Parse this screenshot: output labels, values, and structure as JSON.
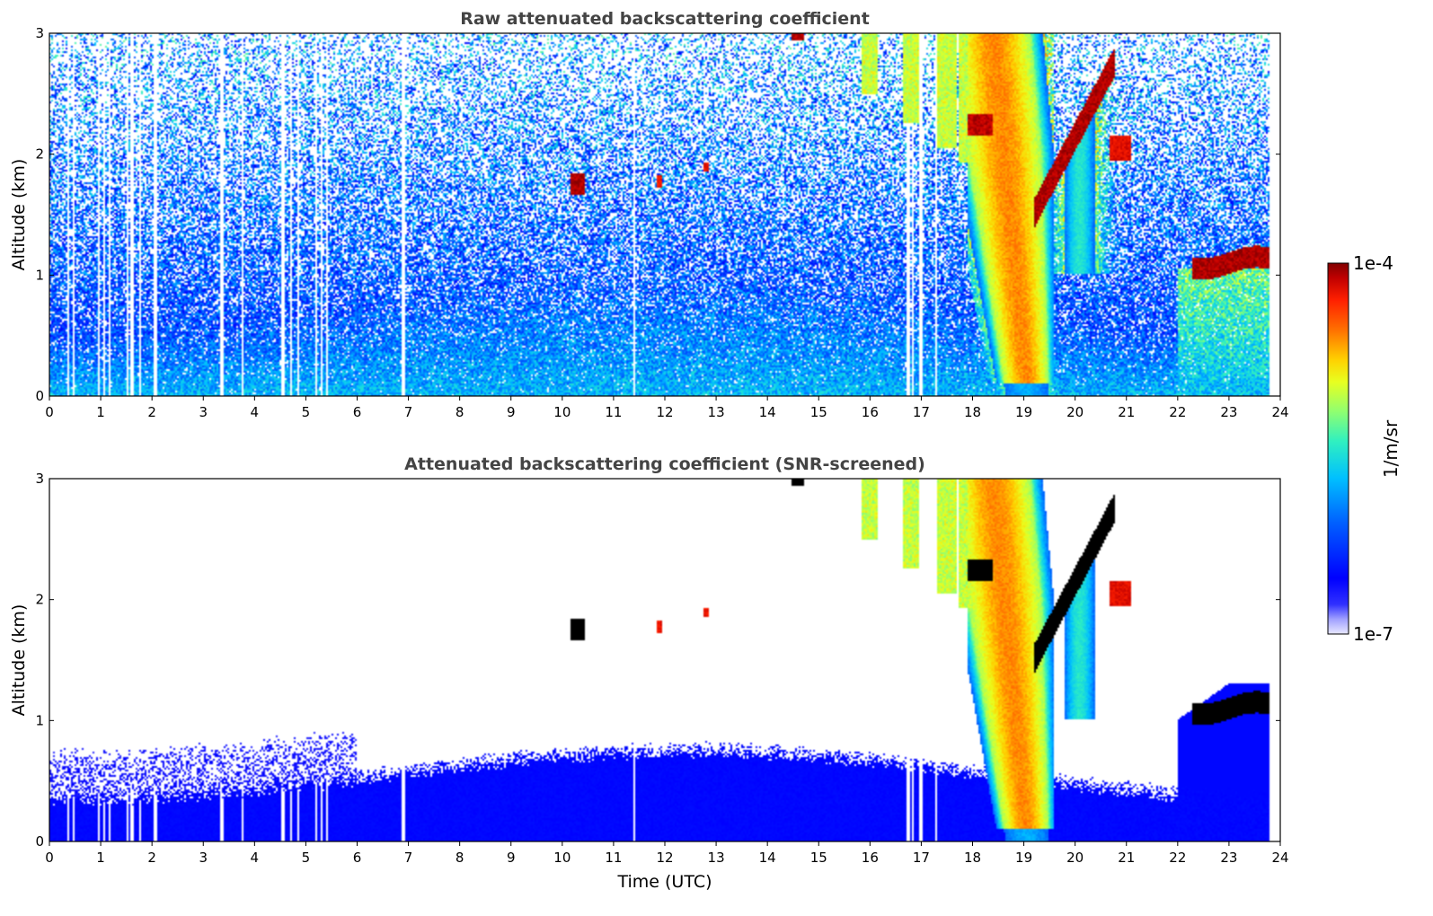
{
  "chart_data": [
    {
      "type": "heatmap",
      "title": "Raw attenuated backscattering coefficient",
      "xlabel": "",
      "ylabel": "Altitude (km)",
      "xlim": [
        0,
        24
      ],
      "ylim": [
        0,
        3
      ],
      "xticks": [
        "0",
        "1",
        "2",
        "3",
        "4",
        "5",
        "6",
        "7",
        "8",
        "9",
        "10",
        "11",
        "12",
        "13",
        "14",
        "15",
        "16",
        "17",
        "18",
        "19",
        "20",
        "21",
        "22",
        "23",
        "24"
      ],
      "yticks": [
        "0",
        "1",
        "2",
        "3"
      ],
      "screened": false
    },
    {
      "type": "heatmap",
      "title": "Attenuated backscattering coefficient (SNR-screened)",
      "xlabel": "Time (UTC)",
      "ylabel": "Altitude (km)",
      "xlim": [
        0,
        24
      ],
      "ylim": [
        0,
        3
      ],
      "xticks": [
        "0",
        "1",
        "2",
        "3",
        "4",
        "5",
        "6",
        "7",
        "8",
        "9",
        "10",
        "11",
        "12",
        "13",
        "14",
        "15",
        "16",
        "17",
        "18",
        "19",
        "20",
        "21",
        "22",
        "23",
        "24"
      ],
      "yticks": [
        "0",
        "1",
        "2",
        "3"
      ],
      "screened": true
    }
  ],
  "colorbar": {
    "label": "1/m/sr",
    "max_label": "1e-4",
    "min_label": "1e-7",
    "scale": "log",
    "range": [
      1e-07,
      0.0001
    ],
    "colormap": [
      "#e8e8ff",
      "#a0a0ff",
      "#3030ff",
      "#0000ff",
      "#0040ff",
      "#0090ff",
      "#00d0ff",
      "#30f0d0",
      "#80ff80",
      "#d0ff30",
      "#ffe000",
      "#ff9000",
      "#ff3000",
      "#d00000",
      "#800000"
    ]
  }
}
